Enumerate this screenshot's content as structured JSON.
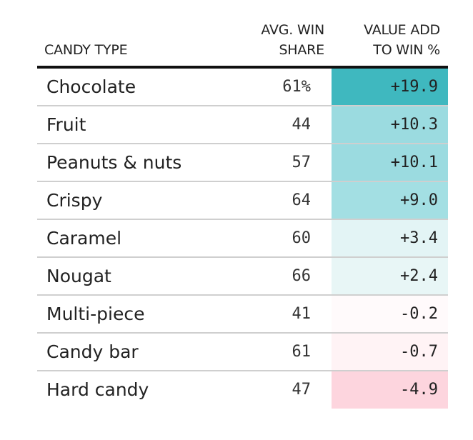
{
  "headers": {
    "type": "CANDY TYPE",
    "share_line1": "AVG. WIN",
    "share_line2": "SHARE",
    "value_line1": "VALUE ADD",
    "value_line2": "TO WIN %"
  },
  "chart_data": {
    "type": "table",
    "columns": [
      "CANDY TYPE",
      "AVG. WIN SHARE",
      "VALUE ADD TO WIN %"
    ],
    "rows": [
      {
        "type": "Chocolate",
        "share": "61%",
        "value": "+19.9",
        "value_num": 19.9,
        "color": "#3fb8bf"
      },
      {
        "type": "Fruit",
        "share": "44",
        "value": "+10.3",
        "value_num": 10.3,
        "color": "#9bdbe0"
      },
      {
        "type": "Peanuts & nuts",
        "share": "57",
        "value": "+10.1",
        "value_num": 10.1,
        "color": "#9bdbe0"
      },
      {
        "type": "Crispy",
        "share": "64",
        "value": "+9.0",
        "value_num": 9.0,
        "color": "#a3dfe3"
      },
      {
        "type": "Caramel",
        "share": "60",
        "value": "+3.4",
        "value_num": 3.4,
        "color": "#e3f4f5"
      },
      {
        "type": "Nougat",
        "share": "66",
        "value": "+2.4",
        "value_num": 2.4,
        "color": "#e8f6f6"
      },
      {
        "type": "Multi-piece",
        "share": "41",
        "value": "-0.2",
        "value_num": -0.2,
        "color": "#fffafb"
      },
      {
        "type": "Candy bar",
        "share": "61",
        "value": "-0.7",
        "value_num": -0.7,
        "color": "#fff3f5"
      },
      {
        "type": "Hard candy",
        "share": "47",
        "value": "-4.9",
        "value_num": -4.9,
        "color": "#fdd5de"
      }
    ]
  }
}
